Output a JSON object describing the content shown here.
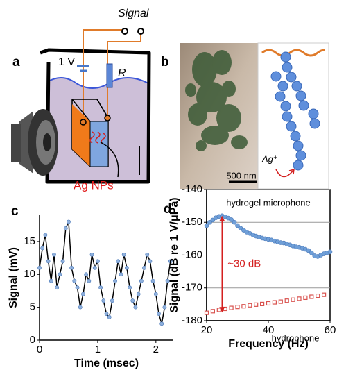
{
  "panels": {
    "a": "a",
    "b": "b",
    "c": "c",
    "d": "d"
  },
  "diagram": {
    "voltage": "1 V",
    "resistor": "R",
    "signal": "Signal",
    "particles": "Ag NPs"
  },
  "micrograph": {
    "scale_bar": "500 nm",
    "ion": "Ag⁺"
  },
  "chart_data": [
    {
      "type": "line",
      "xlabel": "Time (msec)",
      "ylabel": "Signal (mV)",
      "xlim": [
        0,
        2.3
      ],
      "xticks": [
        0,
        1,
        2
      ],
      "ylim": [
        0,
        19
      ],
      "yticks": [
        0,
        5,
        10,
        15
      ],
      "grid": false,
      "x": [
        0,
        0.05,
        0.1,
        0.15,
        0.2,
        0.25,
        0.3,
        0.35,
        0.4,
        0.45,
        0.5,
        0.55,
        0.6,
        0.65,
        0.7,
        0.75,
        0.8,
        0.85,
        0.9,
        0.95,
        1.0,
        1.05,
        1.1,
        1.15,
        1.2,
        1.25,
        1.3,
        1.35,
        1.4,
        1.45,
        1.5,
        1.55,
        1.6,
        1.65,
        1.7,
        1.75,
        1.8,
        1.85,
        1.9,
        1.95,
        2.0,
        2.05,
        2.1,
        2.15,
        2.2,
        2.25
      ],
      "series": [
        {
          "color": "#000000",
          "marker_color": "#8fb0dc",
          "values": [
            11,
            14,
            16,
            12,
            9,
            13,
            8,
            10,
            12,
            17,
            18,
            11,
            9,
            8,
            5,
            7,
            10,
            9,
            13,
            11,
            12,
            8,
            6,
            4,
            3.5,
            6,
            9,
            12,
            10,
            13,
            11,
            8,
            6,
            5,
            7,
            9,
            11,
            13,
            12,
            9,
            7,
            4,
            2.5,
            5,
            9,
            12
          ]
        }
      ]
    },
    {
      "type": "scatter",
      "xlabel": "Frequency (Hz)",
      "ylabel": "Signal (dB re 1 V/μPa)",
      "xlim": [
        20,
        60
      ],
      "xticks": [
        20,
        40,
        60
      ],
      "ylim": [
        -180,
        -140
      ],
      "yticks": [
        -180,
        -170,
        -160,
        -150,
        -140
      ],
      "grid": true,
      "series": [
        {
          "name": "hydrogel microphone",
          "color": "#6f9fd8",
          "marker": "circle",
          "x": [
            20,
            21,
            22,
            23,
            24,
            25,
            26,
            27,
            28,
            29,
            30,
            31,
            32,
            33,
            34,
            35,
            36,
            37,
            38,
            39,
            40,
            41,
            42,
            43,
            44,
            45,
            46,
            47,
            48,
            49,
            50,
            51,
            52,
            53,
            54,
            55,
            56,
            57,
            58,
            59,
            60
          ],
          "values": [
            -151,
            -150,
            -149.3,
            -148.6,
            -148.2,
            -148,
            -148.3,
            -148.7,
            -149.2,
            -150,
            -151,
            -151.8,
            -152.4,
            -153,
            -153.4,
            -153.8,
            -154.2,
            -154.5,
            -154.8,
            -155,
            -155.2,
            -155.4,
            -155.7,
            -156,
            -156.2,
            -156.3,
            -156.6,
            -156.9,
            -157.2,
            -157.5,
            -157.6,
            -157.9,
            -158.2,
            -158.6,
            -159.3,
            -160.2,
            -160.4,
            -160,
            -159.6,
            -159.3,
            -159
          ]
        },
        {
          "name": "hydrophone",
          "color": "#d9534f",
          "marker": "square",
          "x": [
            20,
            22,
            24,
            26,
            28,
            30,
            32,
            34,
            36,
            38,
            40,
            42,
            44,
            46,
            48,
            50,
            52,
            54,
            56,
            58
          ],
          "values": [
            -177.6,
            -177.1,
            -176.7,
            -176.4,
            -176.1,
            -175.8,
            -175.6,
            -175.3,
            -175.1,
            -174.9,
            -174.7,
            -174.4,
            -174.2,
            -173.9,
            -173.6,
            -173.3,
            -173,
            -172.7,
            -172.4,
            -172.1
          ]
        }
      ],
      "annotations": [
        {
          "text": "~30 dB",
          "x": 25,
          "y1": -148,
          "y2": -177.5,
          "color": "#d42020"
        }
      ]
    }
  ]
}
